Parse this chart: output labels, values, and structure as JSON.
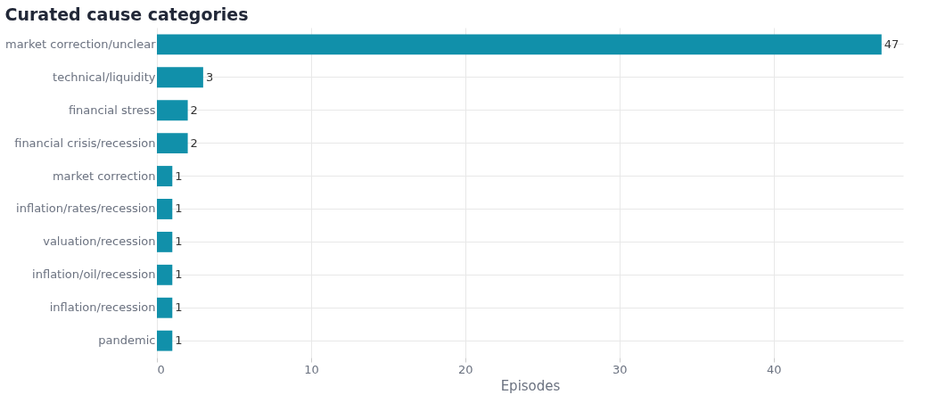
{
  "chart_data": {
    "type": "bar",
    "orientation": "horizontal",
    "title": "Curated cause categories",
    "xlabel": "Episodes",
    "categories": [
      "market correction/unclear",
      "technical/liquidity",
      "financial stress",
      "financial crisis/recession",
      "market correction",
      "inflation/rates/recession",
      "valuation/recession",
      "inflation/oil/recession",
      "inflation/recession",
      "pandemic"
    ],
    "values": [
      47,
      3,
      2,
      2,
      1,
      1,
      1,
      1,
      1,
      1
    ],
    "color": "#1190aa",
    "xlim": [
      0,
      48.4
    ],
    "xticks": [
      0,
      10,
      20,
      30,
      40
    ],
    "grid": true,
    "data_labels": true
  }
}
